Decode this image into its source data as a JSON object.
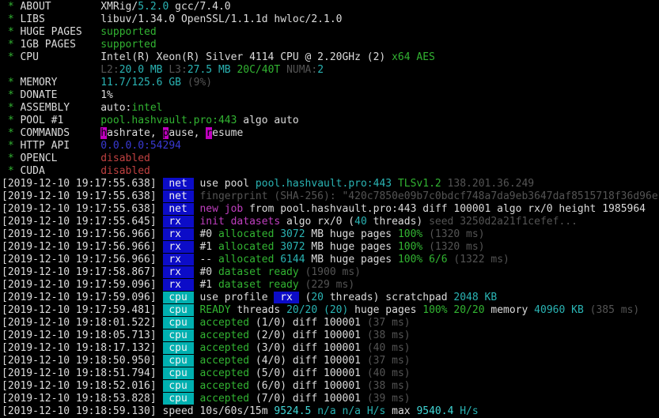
{
  "terminal": {
    "palette": {
      "background": "#000000",
      "text": "#dcdcdc",
      "green": "#32b432",
      "cyan": "#2ab4b4",
      "bright_cyan": "#41d6d6",
      "dark_gray": "#545454",
      "magenta": "#c03fc0",
      "blue": "#3939d4",
      "red": "#c04141",
      "badge_blue_bg": "#0c0cc8",
      "badge_teal_bg": "#00b0b0",
      "hotkey_bg": "#bf00bf"
    },
    "badges": {
      "net": " net ",
      "rx": " rx  ",
      "cpu": " cpu "
    },
    "lines": [
      {
        "segs": [
          [
            " * ",
            "g"
          ],
          [
            "ABOUT        ",
            "w"
          ],
          [
            "XMRig/",
            "w"
          ],
          [
            "5.2.0",
            "c"
          ],
          [
            " gcc/7.4.0",
            "w"
          ]
        ]
      },
      {
        "segs": [
          [
            " * ",
            "g"
          ],
          [
            "LIBS         ",
            "w"
          ],
          [
            "libuv/1.34.0 OpenSSL/1.1.1d hwloc/2.1.0",
            "w"
          ]
        ]
      },
      {
        "segs": [
          [
            " * ",
            "g"
          ],
          [
            "HUGE PAGES   ",
            "w"
          ],
          [
            "supported",
            "g"
          ]
        ]
      },
      {
        "segs": [
          [
            " * ",
            "g"
          ],
          [
            "1GB PAGES    ",
            "w"
          ],
          [
            "supported",
            "g"
          ]
        ]
      },
      {
        "segs": [
          [
            " * ",
            "g"
          ],
          [
            "CPU          ",
            "w"
          ],
          [
            "Intel(R) Xeon(R) Silver 4114 CPU @ 2.20GHz (2) ",
            "w"
          ],
          [
            "x64 AES",
            "g"
          ]
        ]
      },
      {
        "segs": [
          [
            "                ",
            "w"
          ],
          [
            "L2:",
            "d"
          ],
          [
            "20.0 MB",
            "c"
          ],
          [
            " ",
            "w"
          ],
          [
            "L3:",
            "d"
          ],
          [
            "27.5 MB",
            "c"
          ],
          [
            " ",
            "w"
          ],
          [
            "20C/40T",
            "g"
          ],
          [
            " ",
            "w"
          ],
          [
            "NUMA:",
            "d"
          ],
          [
            "2",
            "c"
          ]
        ]
      },
      {
        "segs": [
          [
            " * ",
            "g"
          ],
          [
            "MEMORY       ",
            "w"
          ],
          [
            "11.7/125.6 GB",
            "c"
          ],
          [
            " ",
            "w"
          ],
          [
            "(9%)",
            "d"
          ]
        ]
      },
      {
        "segs": [
          [
            " * ",
            "g"
          ],
          [
            "DONATE       ",
            "w"
          ],
          [
            "1%",
            "w"
          ]
        ]
      },
      {
        "segs": [
          [
            " * ",
            "g"
          ],
          [
            "ASSEMBLY     ",
            "w"
          ],
          [
            "auto:",
            "w"
          ],
          [
            "intel",
            "g"
          ]
        ]
      },
      {
        "segs": [
          [
            " * ",
            "g"
          ],
          [
            "POOL #1      ",
            "w"
          ],
          [
            "pool.hashvault.pro:443",
            "g"
          ],
          [
            " algo auto",
            "w"
          ]
        ]
      },
      {
        "segs": [
          [
            " * ",
            "g"
          ],
          [
            "COMMANDS     ",
            "w"
          ],
          [
            "h",
            "hk"
          ],
          [
            "ashrate, ",
            "w"
          ],
          [
            "p",
            "hk"
          ],
          [
            "ause, ",
            "w"
          ],
          [
            "r",
            "hk"
          ],
          [
            "esume",
            "w"
          ]
        ]
      },
      {
        "segs": [
          [
            " * ",
            "g"
          ],
          [
            "HTTP API     ",
            "w"
          ],
          [
            "0.0.0.0:54294",
            "b"
          ]
        ]
      },
      {
        "segs": [
          [
            " * ",
            "g"
          ],
          [
            "OPENCL       ",
            "w"
          ],
          [
            "disabled",
            "r"
          ]
        ]
      },
      {
        "segs": [
          [
            " * ",
            "g"
          ],
          [
            "CUDA         ",
            "w"
          ],
          [
            "disabled",
            "r"
          ]
        ]
      },
      {
        "ts": "[2019-12-10 19:17:55.638]",
        "tag": "net",
        "segs": [
          [
            "use pool ",
            "w"
          ],
          [
            "pool.hashvault.pro:443",
            "c"
          ],
          [
            " ",
            "w"
          ],
          [
            "TLSv1.2",
            "g"
          ],
          [
            " 138.201.36.249",
            "d"
          ]
        ]
      },
      {
        "ts": "[2019-12-10 19:17:55.638]",
        "tag": "net",
        "segs": [
          [
            "fingerprint (SHA-256): \"420c7850e09b7c0bdcf748a7da9eb3647daf8515718f36d96e",
            "d"
          ]
        ]
      },
      {
        "ts": "[2019-12-10 19:17:55.638]",
        "tag": "net",
        "segs": [
          [
            "new job",
            "m"
          ],
          [
            " from pool.hashvault.pro:443 diff 100001 algo rx/0 height 1985964",
            "w"
          ]
        ]
      },
      {
        "ts": "[2019-12-10 19:17:55.645]",
        "tag": "rx",
        "segs": [
          [
            "init datasets",
            "m"
          ],
          [
            " algo rx/0 (",
            "w"
          ],
          [
            "40",
            "c"
          ],
          [
            " threads) ",
            "w"
          ],
          [
            "seed 3250d2a21f1cefef...",
            "d"
          ]
        ]
      },
      {
        "ts": "[2019-12-10 19:17:56.966]",
        "tag": "rx",
        "segs": [
          [
            "#0 ",
            "w"
          ],
          [
            "allocated",
            "g"
          ],
          [
            " ",
            "w"
          ],
          [
            "3072",
            "c"
          ],
          [
            " MB huge pages ",
            "w"
          ],
          [
            "100%",
            "g"
          ],
          [
            " ",
            "w"
          ],
          [
            "(1320 ms)",
            "d"
          ]
        ]
      },
      {
        "ts": "[2019-12-10 19:17:56.966]",
        "tag": "rx",
        "segs": [
          [
            "#1 ",
            "w"
          ],
          [
            "allocated",
            "g"
          ],
          [
            " ",
            "w"
          ],
          [
            "3072",
            "c"
          ],
          [
            " MB huge pages ",
            "w"
          ],
          [
            "100%",
            "g"
          ],
          [
            " ",
            "w"
          ],
          [
            "(1320 ms)",
            "d"
          ]
        ]
      },
      {
        "ts": "[2019-12-10 19:17:56.966]",
        "tag": "rx",
        "segs": [
          [
            "-- ",
            "w"
          ],
          [
            "allocated",
            "g"
          ],
          [
            " ",
            "w"
          ],
          [
            "6144",
            "c"
          ],
          [
            " MB huge pages ",
            "w"
          ],
          [
            "100% 6/6",
            "g"
          ],
          [
            " ",
            "w"
          ],
          [
            "(1322 ms)",
            "d"
          ]
        ]
      },
      {
        "ts": "[2019-12-10 19:17:58.867]",
        "tag": "rx",
        "segs": [
          [
            "#0 ",
            "w"
          ],
          [
            "dataset ready",
            "g"
          ],
          [
            " ",
            "w"
          ],
          [
            "(1900 ms)",
            "d"
          ]
        ]
      },
      {
        "ts": "[2019-12-10 19:17:59.096]",
        "tag": "rx",
        "segs": [
          [
            "#1 ",
            "w"
          ],
          [
            "dataset ready",
            "g"
          ],
          [
            " ",
            "w"
          ],
          [
            "(229 ms)",
            "d"
          ]
        ]
      },
      {
        "ts": "[2019-12-10 19:17:59.096]",
        "tag": "cpu",
        "segs": [
          [
            "use profile ",
            "w"
          ],
          [
            " rx ",
            "bdg"
          ],
          [
            " (",
            "w"
          ],
          [
            "20",
            "c"
          ],
          [
            " threads) scratchpad ",
            "w"
          ],
          [
            "2048 KB",
            "c"
          ]
        ]
      },
      {
        "ts": "[2019-12-10 19:17:59.481]",
        "tag": "cpu",
        "segs": [
          [
            "READY",
            "g"
          ],
          [
            " threads ",
            "w"
          ],
          [
            "20/20 (20)",
            "c"
          ],
          [
            " huge pages ",
            "w"
          ],
          [
            "100% 20/20",
            "g"
          ],
          [
            " memory ",
            "w"
          ],
          [
            "40960 KB",
            "c"
          ],
          [
            " ",
            "w"
          ],
          [
            "(385 ms)",
            "d"
          ]
        ]
      },
      {
        "ts": "[2019-12-10 19:18:01.522]",
        "tag": "cpu",
        "segs": [
          [
            "accepted",
            "g"
          ],
          [
            " (1/0) diff 100001 ",
            "w"
          ],
          [
            "(37 ms)",
            "d"
          ]
        ]
      },
      {
        "ts": "[2019-12-10 19:18:05.713]",
        "tag": "cpu",
        "segs": [
          [
            "accepted",
            "g"
          ],
          [
            " (2/0) diff 100001 ",
            "w"
          ],
          [
            "(38 ms)",
            "d"
          ]
        ]
      },
      {
        "ts": "[2019-12-10 19:18:17.132]",
        "tag": "cpu",
        "segs": [
          [
            "accepted",
            "g"
          ],
          [
            " (3/0) diff 100001 ",
            "w"
          ],
          [
            "(40 ms)",
            "d"
          ]
        ]
      },
      {
        "ts": "[2019-12-10 19:18:50.950]",
        "tag": "cpu",
        "segs": [
          [
            "accepted",
            "g"
          ],
          [
            " (4/0) diff 100001 ",
            "w"
          ],
          [
            "(37 ms)",
            "d"
          ]
        ]
      },
      {
        "ts": "[2019-12-10 19:18:51.794]",
        "tag": "cpu",
        "segs": [
          [
            "accepted",
            "g"
          ],
          [
            " (5/0) diff 100001 ",
            "w"
          ],
          [
            "(40 ms)",
            "d"
          ]
        ]
      },
      {
        "ts": "[2019-12-10 19:18:52.016]",
        "tag": "cpu",
        "segs": [
          [
            "accepted",
            "g"
          ],
          [
            " (6/0) diff 100001 ",
            "w"
          ],
          [
            "(38 ms)",
            "d"
          ]
        ]
      },
      {
        "ts": "[2019-12-10 19:18:53.828]",
        "tag": "cpu",
        "segs": [
          [
            "accepted",
            "g"
          ],
          [
            " (7/0) diff 100001 ",
            "w"
          ],
          [
            "(39 ms)",
            "d"
          ]
        ]
      },
      {
        "ts": "[2019-12-10 19:18:59.130]",
        "segs": [
          [
            "speed 10s/60s/15m ",
            "w"
          ],
          [
            "9524.5",
            "bc"
          ],
          [
            " ",
            "w"
          ],
          [
            "n/a n/a",
            "c"
          ],
          [
            " ",
            "w"
          ],
          [
            "H/s",
            "c"
          ],
          [
            " max ",
            "w"
          ],
          [
            "9540.4",
            "bc"
          ],
          [
            " ",
            "w"
          ],
          [
            "H/s",
            "c"
          ]
        ]
      }
    ]
  }
}
